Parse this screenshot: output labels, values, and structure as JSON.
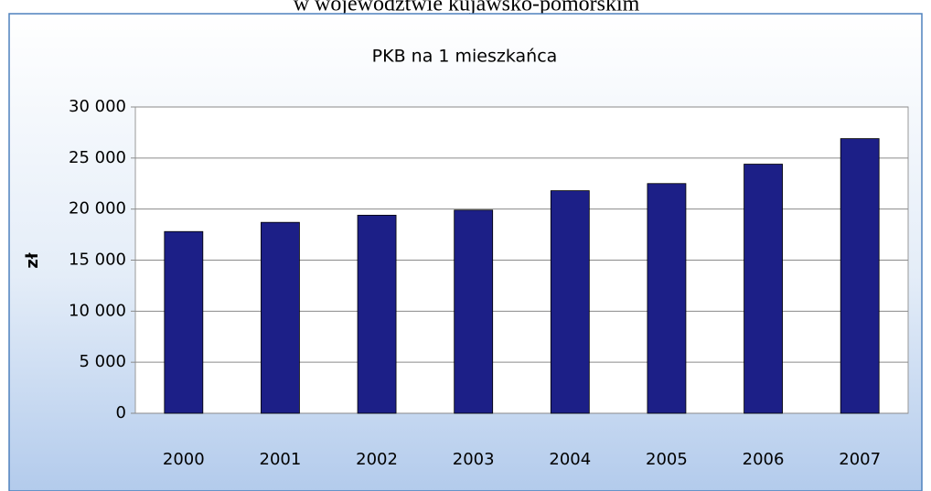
{
  "caption": "w województwie kujawsko-pomorskim",
  "chart_data": {
    "type": "bar",
    "title": "PKB na 1 mieszkańca",
    "y_label": "zł",
    "categories": [
      "2000",
      "2001",
      "2002",
      "2003",
      "2004",
      "2005",
      "2006",
      "2007"
    ],
    "values": [
      17800,
      18700,
      19400,
      19900,
      21800,
      22500,
      24400,
      26900
    ],
    "color": "#1c1f87",
    "ylim": [
      0,
      30000
    ],
    "yticks": [
      0,
      {
        "value": 5000,
        "label": "5 000"
      },
      {
        "value": 10000,
        "label": "10 000"
      },
      {
        "value": 15000,
        "label": "15 000"
      },
      {
        "value": 20000,
        "label": "20 000"
      },
      {
        "value": 25000,
        "label": "25 000"
      },
      {
        "value": 30000,
        "label": "30 000"
      }
    ],
    "grid": true
  }
}
